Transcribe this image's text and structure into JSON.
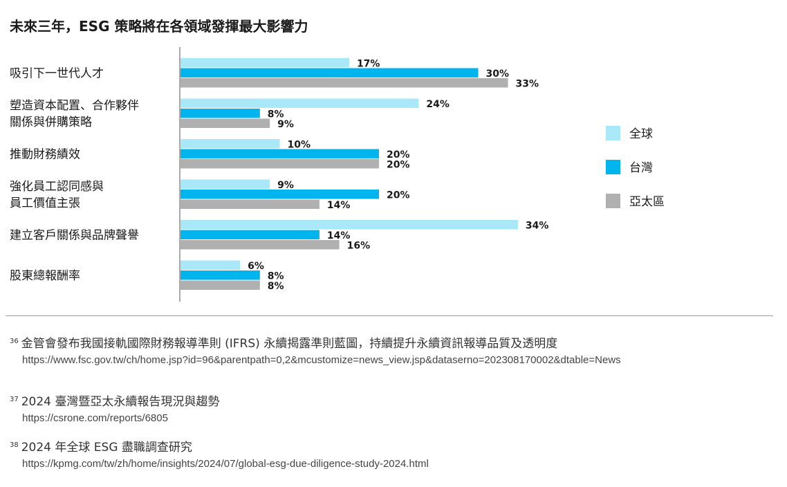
{
  "title": "未來三年，ESG 策略將在各領域發揮最大影響力",
  "chart_data": {
    "type": "bar",
    "orientation": "horizontal",
    "categories": [
      [
        "吸引下一世代人才"
      ],
      [
        "塑造資本配置、合作夥伴",
        "關係與併購策略"
      ],
      [
        "推動財務績效"
      ],
      [
        "強化員工認同感與",
        "員工價值主張"
      ],
      [
        "建立客戶關係與品牌聲譽"
      ],
      [
        "股東總報酬率"
      ]
    ],
    "series": [
      {
        "name": "全球",
        "color": "#a8e8f8",
        "values": [
          17,
          24,
          10,
          9,
          34,
          6
        ]
      },
      {
        "name": "台灣",
        "color": "#00b4ee",
        "values": [
          30,
          8,
          20,
          20,
          14,
          8
        ]
      },
      {
        "name": "亞太區",
        "color": "#b0b0b0",
        "values": [
          33,
          9,
          20,
          14,
          16,
          8
        ]
      }
    ],
    "value_suffix": "%",
    "legend_position": "right",
    "grid": false
  },
  "footnotes": [
    {
      "num": "36",
      "text": "金管會發布我國接軌國際財務報導準則 (IFRS) 永續揭露準則藍圖，持續提升永續資訊報導品質及透明度",
      "url": "https://www.fsc.gov.tw/ch/home.jsp?id=96&parentpath=0,2&mcustomize=news_view.jsp&dataserno=202308170002&dtable=News"
    },
    {
      "num": "37",
      "text": "2024 臺灣暨亞太永續報告現況與趨勢",
      "url": "https://csrone.com/reports/6805"
    },
    {
      "num": "38",
      "text": "2024 年全球 ESG 盡職調查研究",
      "url": "https://kpmg.com/tw/zh/home/insights/2024/07/global-esg-due-diligence-study-2024.html"
    }
  ]
}
